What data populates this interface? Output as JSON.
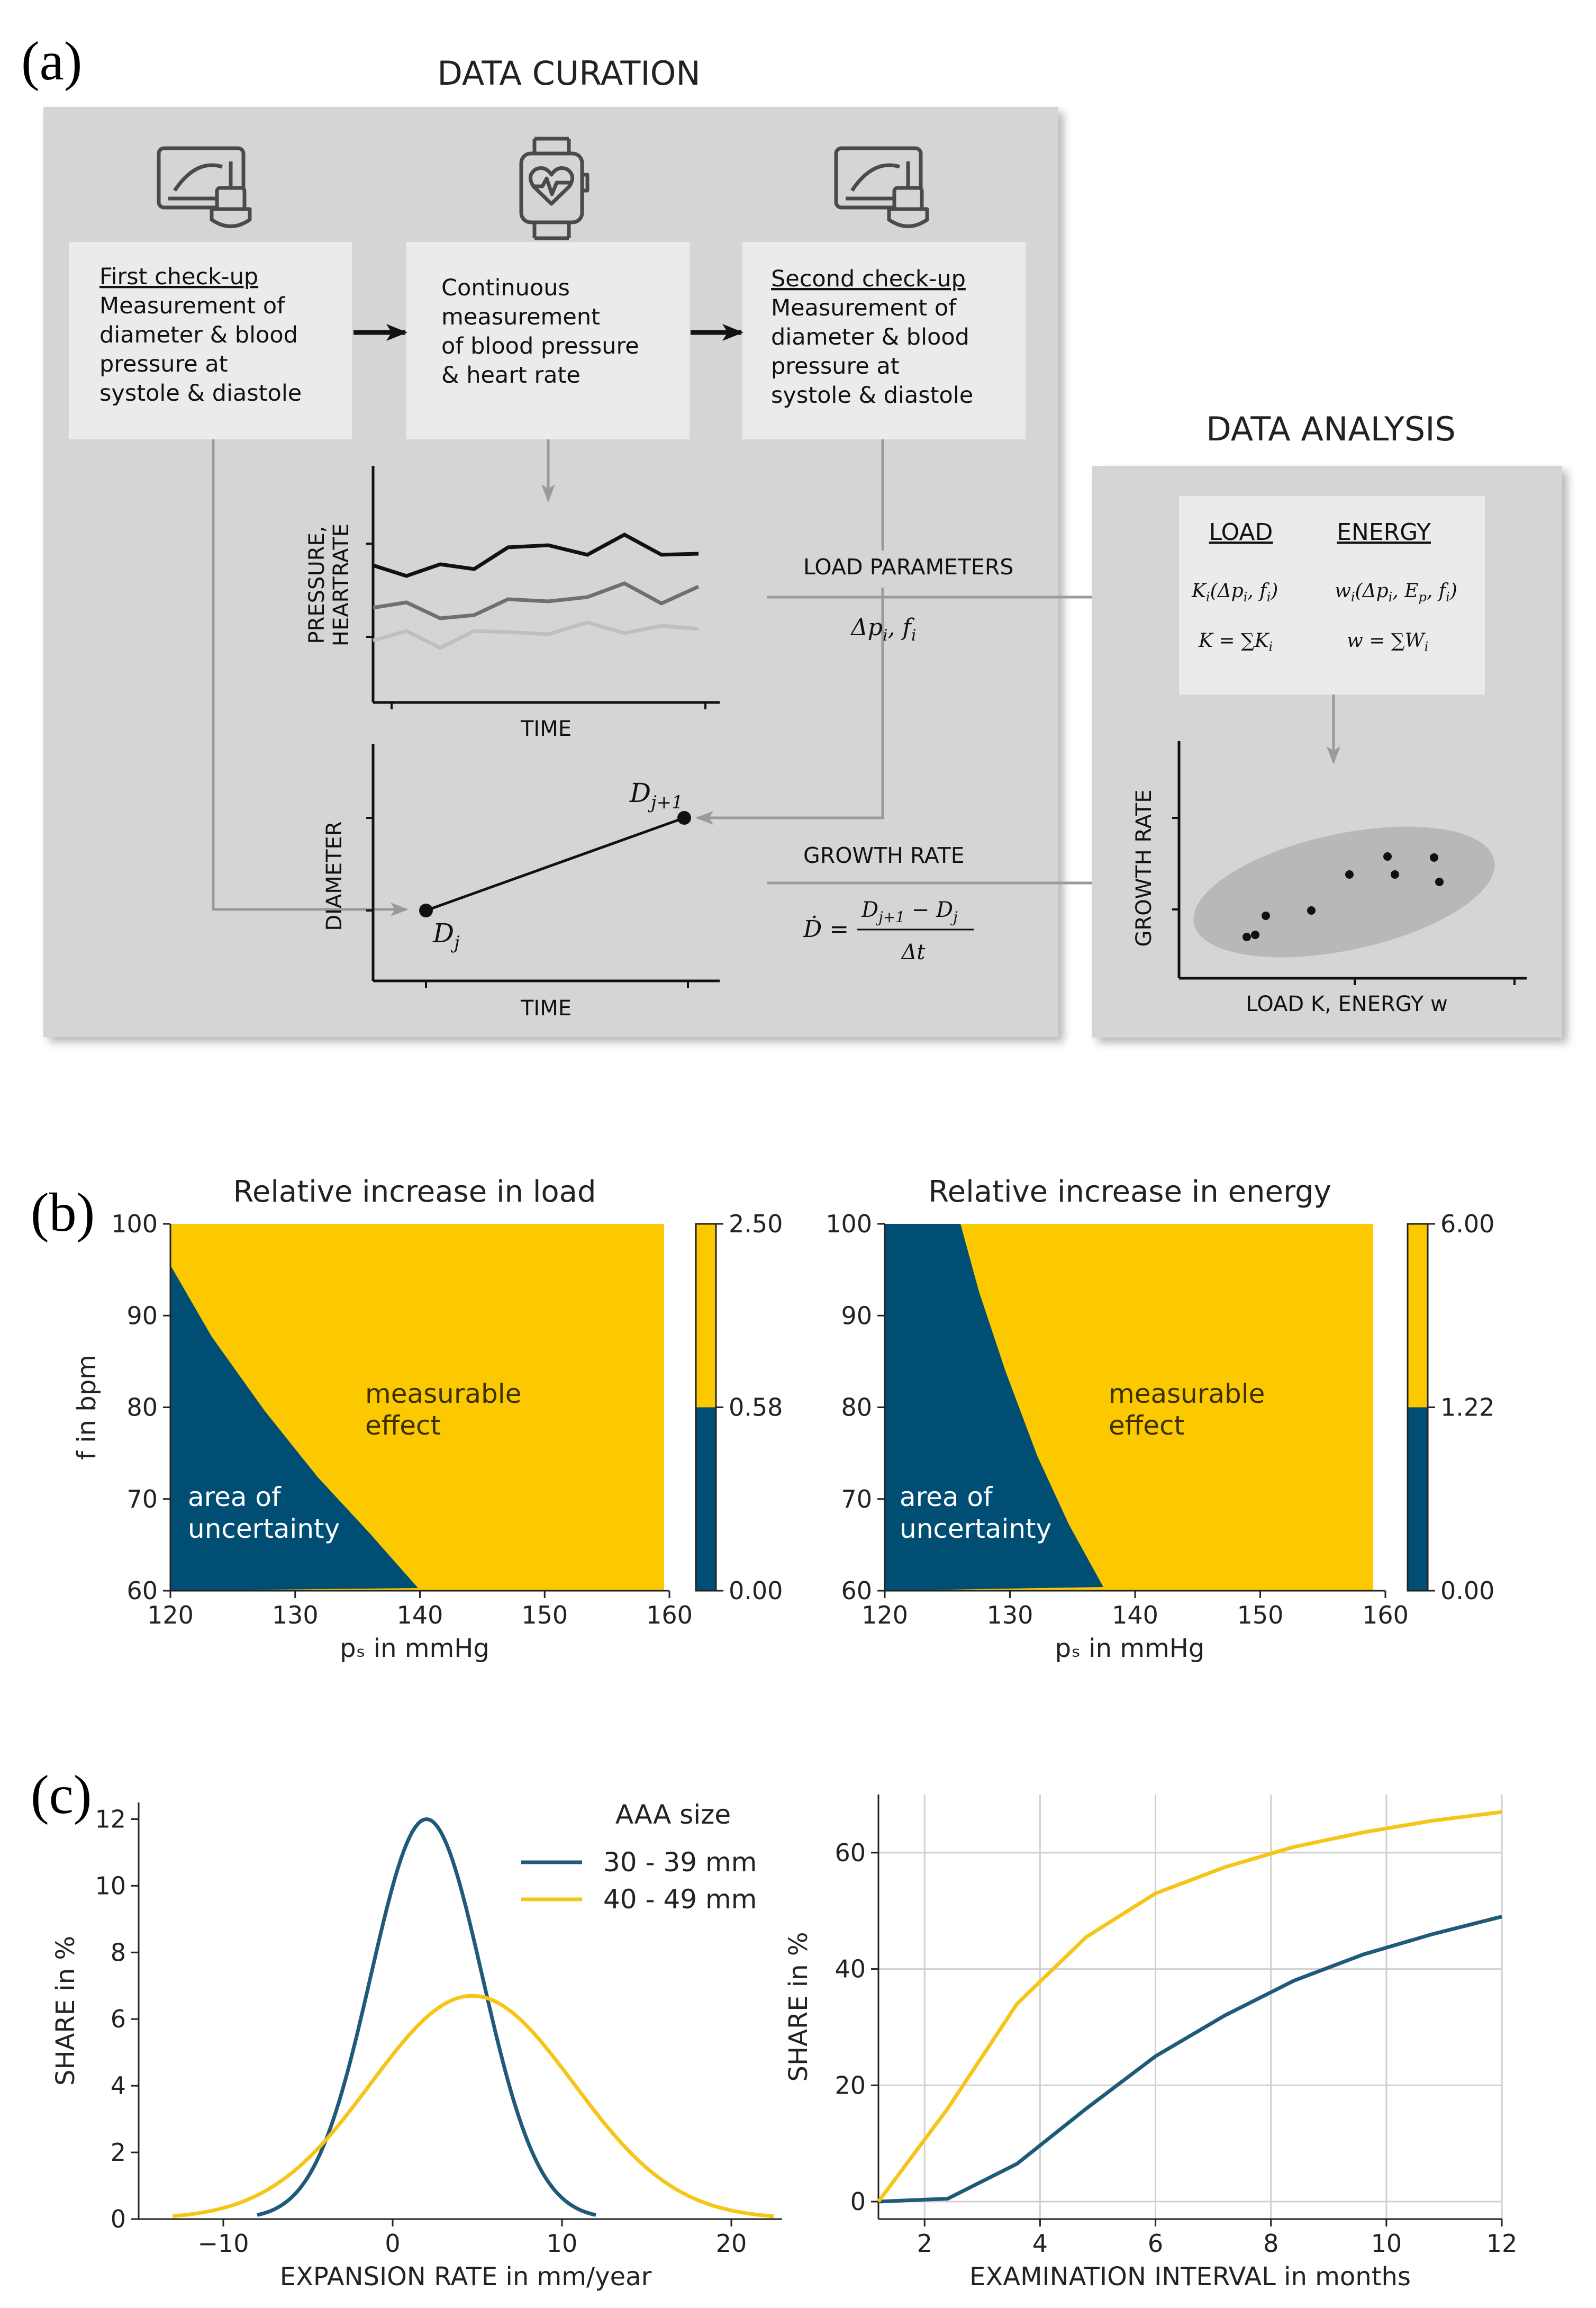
{
  "panel_a": {
    "label": "(a)",
    "curation_title": "DATA CURATION",
    "analysis_title": "DATA ANALYSIS",
    "box1": {
      "title": "First check-up",
      "lines": [
        "Measurement of",
        "diameter & blood",
        "pressure at",
        "systole & diastole"
      ]
    },
    "box2": {
      "lines": [
        "Continuous",
        "measurement",
        "of blood pressure",
        "& heart rate"
      ]
    },
    "box3": {
      "title": "Second check-up",
      "lines": [
        "Measurement of",
        "diameter & blood",
        "pressure at",
        "systole & diastole"
      ]
    },
    "pressure_plot": {
      "ylabel_1": "PRESSURE,",
      "ylabel_2": "HEARTRATE",
      "xlabel": "TIME"
    },
    "diameter_plot": {
      "ylabel": "DIAMETER",
      "xlabel": "TIME",
      "point_start": "D",
      "point_start_sub": "j",
      "point_end": "D",
      "point_end_sub": "j+1"
    },
    "load_params": {
      "label": "LOAD PARAMETERS",
      "formula": "Δp",
      "formula_tail": ", f"
    },
    "growth_rate": {
      "label": "GROWTH RATE",
      "lhs": "Ḋ =",
      "numerator": "D",
      "numerator_sub": "j+1",
      "numerator_tail": " − D",
      "numerator_tail_sub": "j",
      "denominator": "Δt"
    },
    "analysis_box": {
      "load_header": "LOAD",
      "energy_header": "ENERGY",
      "load_f1": "K",
      "load_f1_rest": "(Δp",
      "load_f2": "K = ∑K",
      "energy_f1": "w",
      "energy_f1_rest": "(Δp",
      "energy_f2": "w = ∑W"
    },
    "scatter": {
      "ylabel": "GROWTH RATE",
      "xlabel": "LOAD K, ENERGY w"
    }
  },
  "panel_b": {
    "label": "(b)",
    "colors": {
      "yellow": "#FCC800",
      "blue": "#004E73"
    },
    "heatmaps": [
      {
        "title": "Relative increase in load",
        "ylabel": "f in bpm",
        "xlabel": "pₛ in mmHg",
        "x_ticks": [
          "120",
          "130",
          "140",
          "150",
          "160"
        ],
        "y_ticks": [
          "60",
          "70",
          "80",
          "90",
          "100"
        ],
        "region_effect_1": "measurable",
        "region_effect_2": "effect",
        "region_unc_1": "area of",
        "region_unc_2": "uncertainty",
        "colorbar_ticks": [
          "2.50",
          "0.58",
          "0.00"
        ],
        "colorbar_threshold": 0.58,
        "colorbar_max": 2.5
      },
      {
        "title": "Relative increase in energy",
        "ylabel": "",
        "xlabel": "pₛ in mmHg",
        "x_ticks": [
          "120",
          "130",
          "140",
          "150",
          "160"
        ],
        "y_ticks": [
          "60",
          "70",
          "80",
          "90",
          "100"
        ],
        "region_effect_1": "measurable",
        "region_effect_2": "effect",
        "region_unc_1": "area of",
        "region_unc_2": "uncertainty",
        "colorbar_ticks": [
          "6.00",
          "1.22",
          "0.00"
        ],
        "colorbar_threshold": 1.22,
        "colorbar_max": 6.0
      }
    ]
  },
  "panel_c": {
    "label": "(c)",
    "legend_title": "AAA size",
    "legend_items": [
      "30 - 39 mm",
      "40 - 49 mm"
    ],
    "left": {
      "ylabel": "SHARE in %",
      "xlabel": "EXPANSION RATE in mm/year",
      "x_ticks": [
        "−10",
        "0",
        "10",
        "20"
      ],
      "y_ticks": [
        "0",
        "2",
        "4",
        "6",
        "8",
        "10",
        "12"
      ]
    },
    "right": {
      "ylabel": "SHARE in %",
      "xlabel": "EXAMINATION INTERVAL in months",
      "x_ticks": [
        "2",
        "4",
        "6",
        "8",
        "10",
        "12"
      ],
      "y_ticks": [
        "0",
        "20",
        "40",
        "60"
      ]
    }
  },
  "chart_data": [
    {
      "type": "line",
      "title": "",
      "xlabel": "EXPANSION RATE in mm/year",
      "ylabel": "SHARE in %",
      "xlim": [
        -15,
        23
      ],
      "ylim": [
        0,
        12.5
      ],
      "series": [
        {
          "name": "30 - 39 mm",
          "color": "#1F5A7A",
          "distribution": "normal",
          "mean": 2.0,
          "sd": 3.3,
          "peak": 12.0,
          "x_range": [
            -8,
            12
          ]
        },
        {
          "name": "40 - 49 mm",
          "color": "#F5C518",
          "distribution": "normal",
          "mean": 4.7,
          "sd": 6.0,
          "peak": 6.7,
          "x_range": [
            -13,
            22.5
          ]
        }
      ]
    },
    {
      "type": "line",
      "title": "",
      "xlabel": "EXAMINATION INTERVAL in months",
      "ylabel": "SHARE in %",
      "xlim": [
        1.2,
        12
      ],
      "ylim": [
        -3,
        70
      ],
      "grid": true,
      "x": [
        1.2,
        2.4,
        3.6,
        4.8,
        6.0,
        7.2,
        8.4,
        9.6,
        10.8,
        12.0
      ],
      "series": [
        {
          "name": "30 - 39 mm",
          "color": "#1F5A7A",
          "values": [
            0,
            0.5,
            6.5,
            16,
            25,
            32,
            38,
            42.5,
            46,
            49
          ]
        },
        {
          "name": "40 - 49 mm",
          "color": "#F5C518",
          "values": [
            0,
            16,
            34,
            45.5,
            53,
            57.5,
            61,
            63.5,
            65.5,
            67
          ]
        }
      ]
    }
  ]
}
